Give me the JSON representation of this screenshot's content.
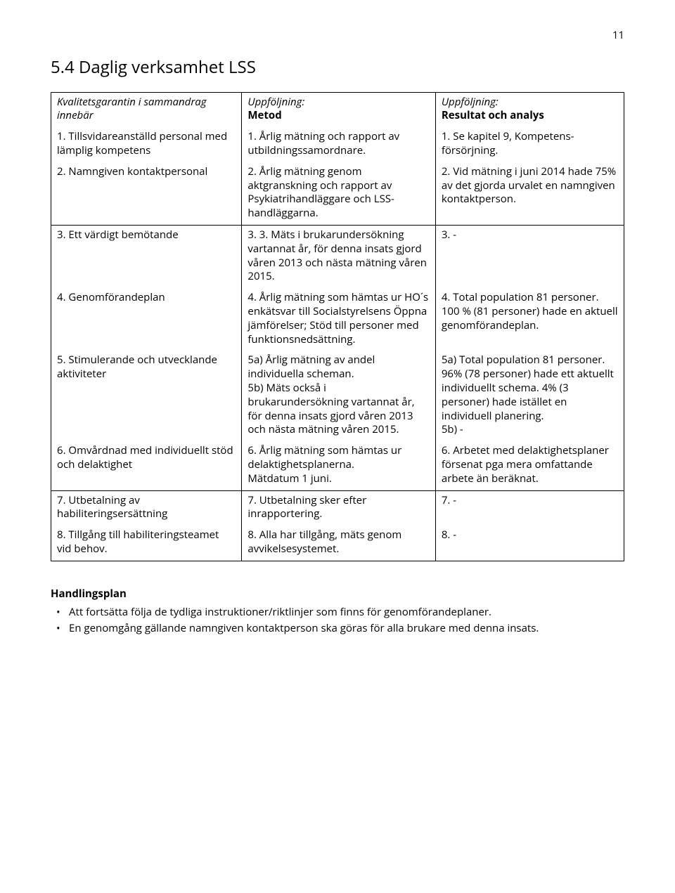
{
  "page_number": "11",
  "section_title": "5.4 Daglig verksamhet LSS",
  "table": {
    "headers": {
      "col1_line1": "Kvalitetsgarantin i sammandrag",
      "col1_line2": "innebär",
      "col2_line1": "Uppföljning:",
      "col2_line2": "Metod",
      "col3_line1": "Uppföljning:",
      "col3_line2": "Resultat och analys"
    },
    "rows": [
      {
        "c1": "1. Tillsvidareanställd personal med lämplig kompetens",
        "c2": "1. Årlig mätning och rapport av utbildningssamordnare.",
        "c3": "1. Se kapitel 9, Kompetens-försörjning."
      },
      {
        "c1": "2. Namngiven kontaktpersonal",
        "c2": "2. Årlig mätning genom aktgranskning och rapport av Psykiatrihandläggare och LSS-handläggarna.",
        "c3": "2. Vid mätning i juni 2014 hade 75% av det gjorda urvalet en namngiven kontaktperson."
      },
      {
        "c1": "3. Ett värdigt bemötande",
        "c2": "3. 3. Mäts i brukarundersökning vartannat år, för denna insats gjord våren 2013 och nästa mätning våren 2015.",
        "c3": "3. -"
      },
      {
        "c1": "4. Genomförandeplan",
        "c2": "4. Årlig mätning som hämtas ur HO´s enkätsvar till Socialstyrelsens Öppna jämförelser; Stöd till personer med funktionsnedsättning.",
        "c3": "4. Total population 81 personer. 100 % (81 personer) hade en aktuell genomförandeplan."
      },
      {
        "c1": "5. Stimulerande och utvecklande aktiviteter",
        "c2": "5a) Årlig mätning av andel individuella scheman.\n5b) Mäts också i brukarundersökning vartannat år, för denna insats gjord våren 2013 och nästa mätning våren 2015.",
        "c3": "5a) Total population 81 personer. 96% (78 personer) hade ett aktuellt individuellt schema. 4% (3 personer) hade istället en individuell planering.\n5b) -"
      },
      {
        "c1": "6. Omvårdnad med individuellt stöd och delaktighet",
        "c2": "6. Årlig mätning som hämtas ur delaktighetsplanerna.\nMätdatum 1 juni.",
        "c3": "6. Arbetet med delaktighetsplaner försenat pga mera omfattande arbete än beräknat."
      },
      {
        "c1": "7. Utbetalning av habiliteringsersättning",
        "c2": "7. Utbetalning sker efter inrapportering.",
        "c3": "7. -"
      },
      {
        "c1": "8. Tillgång till habiliteringsteamet vid behov.",
        "c2": "8. Alla har tillgång, mäts genom avvikelsesystemet.",
        "c3": "8. -"
      }
    ]
  },
  "action_plan": {
    "heading": "Handlingsplan",
    "items": [
      "Att fortsätta följa de tydliga instruktioner/riktlinjer som finns för genomförandeplaner.",
      "En genomgång gällande namngiven kontaktperson ska göras för alla brukare med denna insats."
    ]
  },
  "row_groups": [
    [
      0,
      1
    ],
    [
      2,
      3,
      4,
      5
    ],
    [
      6,
      7
    ]
  ]
}
